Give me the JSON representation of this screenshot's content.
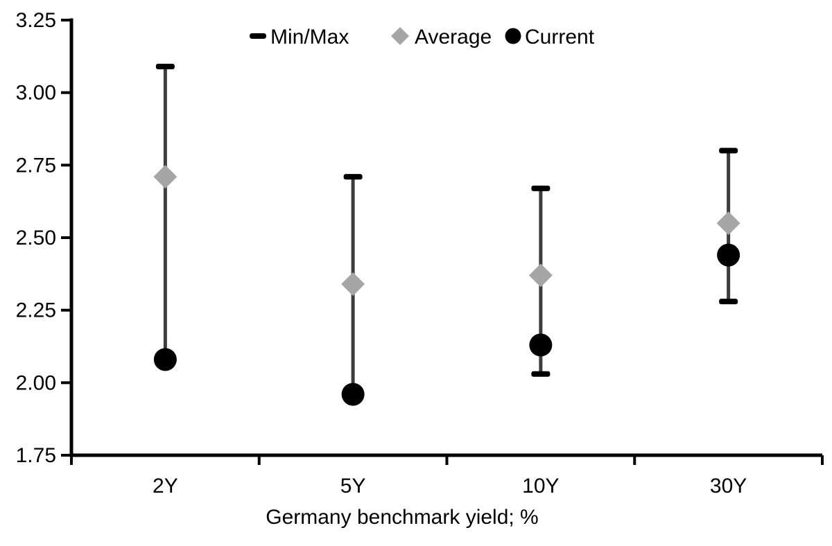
{
  "page": {
    "background": "#ffffff"
  },
  "legend": {
    "position": "top",
    "items": [
      {
        "label": "Min/Max",
        "marker": "dash-icon",
        "color": "#000000"
      },
      {
        "label": "Average",
        "marker": "diamond-icon",
        "color": "#a6a6a6"
      },
      {
        "label": "Current",
        "marker": "circle-icon",
        "color": "#000000"
      }
    ]
  },
  "chart_data": {
    "type": "scatter",
    "subtype": "min-max-range",
    "title": "",
    "xlabel": "Germany benchmark yield; %",
    "ylabel": "",
    "categories": [
      "2Y",
      "5Y",
      "10Y",
      "30Y"
    ],
    "series": [
      {
        "name": "Min/Max",
        "role": "range",
        "max": [
          3.09,
          2.71,
          2.67,
          2.8
        ],
        "min": [
          2.08,
          1.96,
          2.03,
          2.28
        ]
      },
      {
        "name": "Average",
        "role": "marker",
        "shape": "diamond",
        "color": "#a6a6a6",
        "values": [
          2.71,
          2.34,
          2.37,
          2.55
        ]
      },
      {
        "name": "Current",
        "role": "marker",
        "shape": "circle",
        "color": "#000000",
        "values": [
          2.08,
          1.96,
          2.13,
          2.44
        ]
      }
    ],
    "ylim": [
      1.75,
      3.25
    ],
    "yticks": [
      3.25,
      3.0,
      2.75,
      2.5,
      2.25,
      2.0,
      1.75
    ],
    "ytick_format": "0.00",
    "grid": false,
    "legend_position": "top",
    "colors": {
      "range_line": "#3d3d3d",
      "cap": "#000000",
      "axis": "#000000",
      "text": "#000000"
    }
  }
}
